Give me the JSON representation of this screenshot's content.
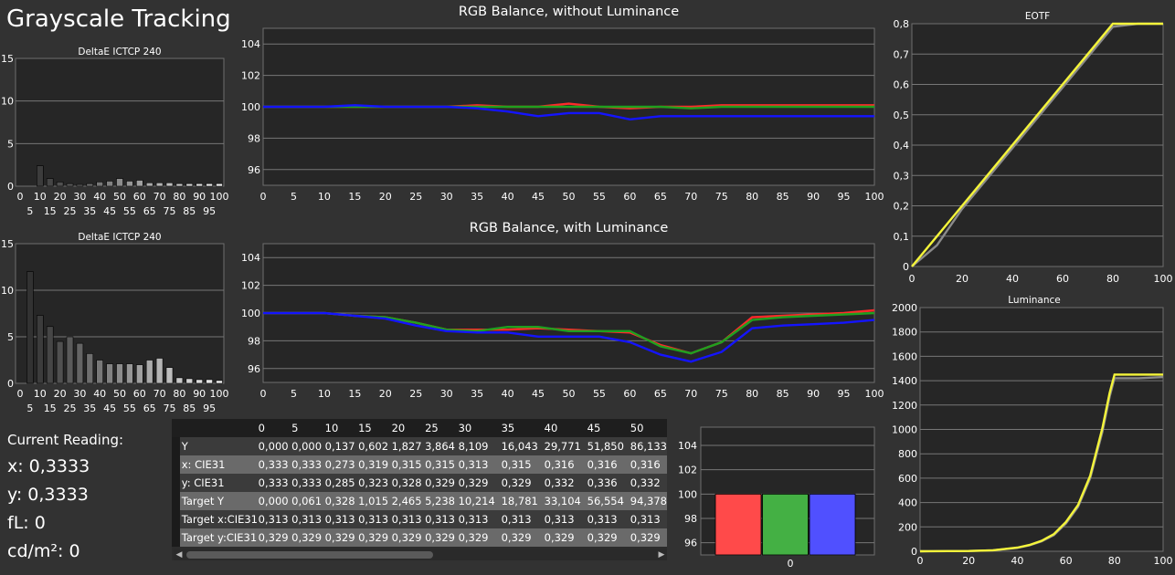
{
  "app_title": "Grayscale Tracking",
  "current_reading": {
    "label": "Current Reading:",
    "x": "x: 0,3333",
    "y": "y: 0,3333",
    "fl": "fL: 0",
    "cdm2": "cd/m²: 0"
  },
  "colors": {
    "red": "#ff2a2a",
    "green": "#1fa01f",
    "blue": "#1414ff",
    "yellow": "#f5f53a",
    "gray": "#8a8a8a",
    "bar_red": "#ff4a4a",
    "bar_green": "#44b044",
    "bar_blue": "#5050ff"
  },
  "chart_data": [
    {
      "id": "deltae-top",
      "type": "bar",
      "title": "DeltaE ICTCP 240",
      "categories": [
        "0",
        "5",
        "10",
        "15",
        "20",
        "25",
        "30",
        "35",
        "40",
        "45",
        "50",
        "55",
        "60",
        "65",
        "70",
        "75",
        "80",
        "85",
        "90",
        "95",
        "100"
      ],
      "values": [
        0,
        0,
        2.4,
        0.9,
        0.5,
        0.3,
        0.2,
        0.3,
        0.5,
        0.6,
        0.9,
        0.6,
        0.7,
        0.4,
        0.4,
        0.4,
        0.3,
        0.3,
        0.3,
        0.3,
        0.3
      ],
      "ylim": [
        0,
        15
      ],
      "yticks": [
        "15",
        "10",
        "5",
        "0"
      ],
      "xticks_top": [
        "0",
        "10",
        "20",
        "30",
        "40",
        "50",
        "60",
        "70",
        "80",
        "90",
        "100"
      ],
      "xticks_bottom": [
        "5",
        "15",
        "25",
        "35",
        "45",
        "55",
        "65",
        "75",
        "85",
        "95"
      ],
      "grid": true
    },
    {
      "id": "deltae-bottom",
      "type": "bar",
      "title": "DeltaE ICTCP 240",
      "categories": [
        "0",
        "5",
        "10",
        "15",
        "20",
        "25",
        "30",
        "35",
        "40",
        "45",
        "50",
        "55",
        "60",
        "65",
        "70",
        "75",
        "80",
        "85",
        "90",
        "95",
        "100"
      ],
      "values": [
        0,
        12,
        7.3,
        6.1,
        4.5,
        5.0,
        4.3,
        3.2,
        2.5,
        2.1,
        2.1,
        2.1,
        2.0,
        2.5,
        2.7,
        1.7,
        0.6,
        0.5,
        0.4,
        0.4,
        0.3
      ],
      "ylim": [
        0,
        15
      ],
      "yticks": [
        "15",
        "10",
        "5",
        "0"
      ],
      "xticks_top": [
        "0",
        "10",
        "20",
        "30",
        "40",
        "50",
        "60",
        "70",
        "80",
        "90",
        "100"
      ],
      "xticks_bottom": [
        "5",
        "15",
        "25",
        "35",
        "45",
        "55",
        "65",
        "75",
        "85",
        "95"
      ],
      "grid": true
    },
    {
      "id": "rgb-no-lum",
      "type": "line",
      "title": "RGB Balance, without Luminance",
      "x": [
        0,
        5,
        10,
        15,
        20,
        25,
        30,
        35,
        40,
        45,
        50,
        55,
        60,
        65,
        70,
        75,
        80,
        85,
        90,
        95,
        100
      ],
      "series": [
        {
          "color": "red",
          "values": [
            100,
            100,
            100,
            100,
            100,
            100,
            100,
            100.1,
            100,
            100,
            100.2,
            100,
            99.9,
            100,
            100,
            100.1,
            100.1,
            100.1,
            100.1,
            100.1,
            100.1
          ]
        },
        {
          "color": "green",
          "values": [
            100,
            100,
            100,
            100,
            100,
            100,
            100,
            100,
            100,
            100,
            100,
            100,
            100,
            100,
            99.9,
            100,
            100,
            100,
            100,
            100,
            100
          ]
        },
        {
          "color": "blue",
          "values": [
            100,
            100,
            100,
            100.1,
            100,
            100,
            100,
            99.9,
            99.7,
            99.4,
            99.6,
            99.6,
            99.2,
            99.4,
            99.4,
            99.4,
            99.4,
            99.4,
            99.4,
            99.4,
            99.4
          ]
        }
      ],
      "ylim": [
        95,
        105
      ],
      "yticks": [
        "104",
        "102",
        "100",
        "98",
        "96"
      ],
      "xticks": [
        "0",
        "5",
        "10",
        "15",
        "20",
        "25",
        "30",
        "35",
        "40",
        "45",
        "50",
        "55",
        "60",
        "65",
        "70",
        "75",
        "80",
        "85",
        "90",
        "95",
        "100"
      ],
      "grid": true
    },
    {
      "id": "rgb-lum",
      "type": "line",
      "title": "RGB Balance, with Luminance",
      "x": [
        0,
        5,
        10,
        15,
        20,
        25,
        30,
        35,
        40,
        45,
        50,
        55,
        60,
        65,
        70,
        75,
        80,
        85,
        90,
        95,
        100
      ],
      "series": [
        {
          "color": "red",
          "values": [
            100,
            100,
            100,
            99.8,
            99.7,
            99.3,
            98.8,
            98.8,
            98.8,
            98.9,
            98.8,
            98.7,
            98.6,
            97.7,
            97.1,
            97.9,
            99.7,
            99.8,
            99.9,
            100,
            100.2
          ]
        },
        {
          "color": "green",
          "values": [
            100,
            100,
            100,
            99.8,
            99.7,
            99.3,
            98.8,
            98.7,
            99,
            99,
            98.7,
            98.7,
            98.7,
            97.6,
            97.1,
            97.9,
            99.5,
            99.7,
            99.8,
            99.9,
            100
          ]
        },
        {
          "color": "blue",
          "values": [
            100,
            100,
            100,
            99.8,
            99.6,
            99.1,
            98.7,
            98.6,
            98.6,
            98.3,
            98.3,
            98.3,
            97.9,
            97,
            96.5,
            97.2,
            98.9,
            99.1,
            99.2,
            99.3,
            99.5
          ]
        }
      ],
      "ylim": [
        95,
        105
      ],
      "yticks": [
        "104",
        "102",
        "100",
        "98",
        "96"
      ],
      "xticks": [
        "0",
        "5",
        "10",
        "15",
        "20",
        "25",
        "30",
        "35",
        "40",
        "45",
        "50",
        "55",
        "60",
        "65",
        "70",
        "75",
        "80",
        "85",
        "90",
        "95",
        "100"
      ],
      "grid": true
    },
    {
      "id": "rgb-bars",
      "type": "bar",
      "categories": [
        "0"
      ],
      "series": [
        {
          "color": "red",
          "value": 100
        },
        {
          "color": "green",
          "value": 100
        },
        {
          "color": "blue",
          "value": 100
        }
      ],
      "ylim": [
        95,
        105.5
      ],
      "yticks": [
        "104",
        "102",
        "100",
        "98",
        "96"
      ],
      "grid": true
    },
    {
      "id": "eotf",
      "type": "line",
      "title": "EOTF",
      "x": [
        0,
        10,
        20,
        30,
        40,
        50,
        60,
        70,
        80,
        90,
        100
      ],
      "series": [
        {
          "color": "yellow",
          "values": [
            0,
            0.1,
            0.2,
            0.3,
            0.4,
            0.5,
            0.6,
            0.7,
            0.8,
            0.8,
            0.8
          ]
        },
        {
          "color": "gray",
          "values": [
            0,
            0.07,
            0.19,
            0.29,
            0.39,
            0.49,
            0.59,
            0.69,
            0.79,
            0.8,
            0.8
          ]
        }
      ],
      "ylim": [
        0,
        0.8
      ],
      "yticks": [
        "0,8",
        "0,7",
        "0,6",
        "0,5",
        "0,4",
        "0,3",
        "0,2",
        "0,1",
        "0"
      ],
      "xticks": [
        "0",
        "20",
        "40",
        "60",
        "80",
        "100"
      ],
      "grid": true
    },
    {
      "id": "luminance",
      "type": "line",
      "title": "Luminance",
      "x": [
        0,
        20,
        30,
        40,
        45,
        50,
        55,
        60,
        65,
        70,
        75,
        78,
        80,
        90,
        100
      ],
      "series": [
        {
          "color": "yellow",
          "values": [
            0,
            2,
            8,
            30,
            52,
            86,
            140,
            240,
            380,
            620,
            1010,
            1300,
            1450,
            1450,
            1450
          ]
        },
        {
          "color": "gray",
          "values": [
            0,
            2,
            8,
            28,
            49,
            82,
            132,
            228,
            365,
            600,
            980,
            1270,
            1420,
            1420,
            1430
          ]
        }
      ],
      "ylim": [
        0,
        2000
      ],
      "yticks": [
        "2000",
        "1800",
        "1600",
        "1400",
        "1200",
        "1000",
        "800",
        "600",
        "400",
        "200",
        "0"
      ],
      "xticks": [
        "0",
        "20",
        "40",
        "60",
        "80",
        "100"
      ],
      "grid": true
    }
  ],
  "table": {
    "columns": [
      "",
      "0",
      "5",
      "10",
      "15",
      "20",
      "25",
      "30",
      "35",
      "40",
      "45",
      "50"
    ],
    "rows": [
      {
        "label": "Y",
        "values": [
          "0,000",
          "0,000",
          "0,137",
          "0,602",
          "1,827",
          "3,864",
          "8,109",
          "16,043",
          "29,771",
          "51,850",
          "86,133"
        ]
      },
      {
        "label": "x: CIE31",
        "values": [
          "0,333",
          "0,333",
          "0,273",
          "0,319",
          "0,315",
          "0,315",
          "0,313",
          "0,315",
          "0,316",
          "0,316",
          "0,316"
        ]
      },
      {
        "label": "y: CIE31",
        "values": [
          "0,333",
          "0,333",
          "0,285",
          "0,323",
          "0,328",
          "0,329",
          "0,329",
          "0,329",
          "0,332",
          "0,336",
          "0,332"
        ]
      },
      {
        "label": "Target Y",
        "values": [
          "0,000",
          "0,061",
          "0,328",
          "1,015",
          "2,465",
          "5,238",
          "10,214",
          "18,781",
          "33,104",
          "56,554",
          "94,378"
        ]
      },
      {
        "label": "Target x:CIE31",
        "values": [
          "0,313",
          "0,313",
          "0,313",
          "0,313",
          "0,313",
          "0,313",
          "0,313",
          "0,313",
          "0,313",
          "0,313",
          "0,313"
        ]
      },
      {
        "label": "Target y:CIE31",
        "values": [
          "0,329",
          "0,329",
          "0,329",
          "0,329",
          "0,329",
          "0,329",
          "0,329",
          "0,329",
          "0,329",
          "0,329",
          "0,329"
        ]
      }
    ]
  }
}
